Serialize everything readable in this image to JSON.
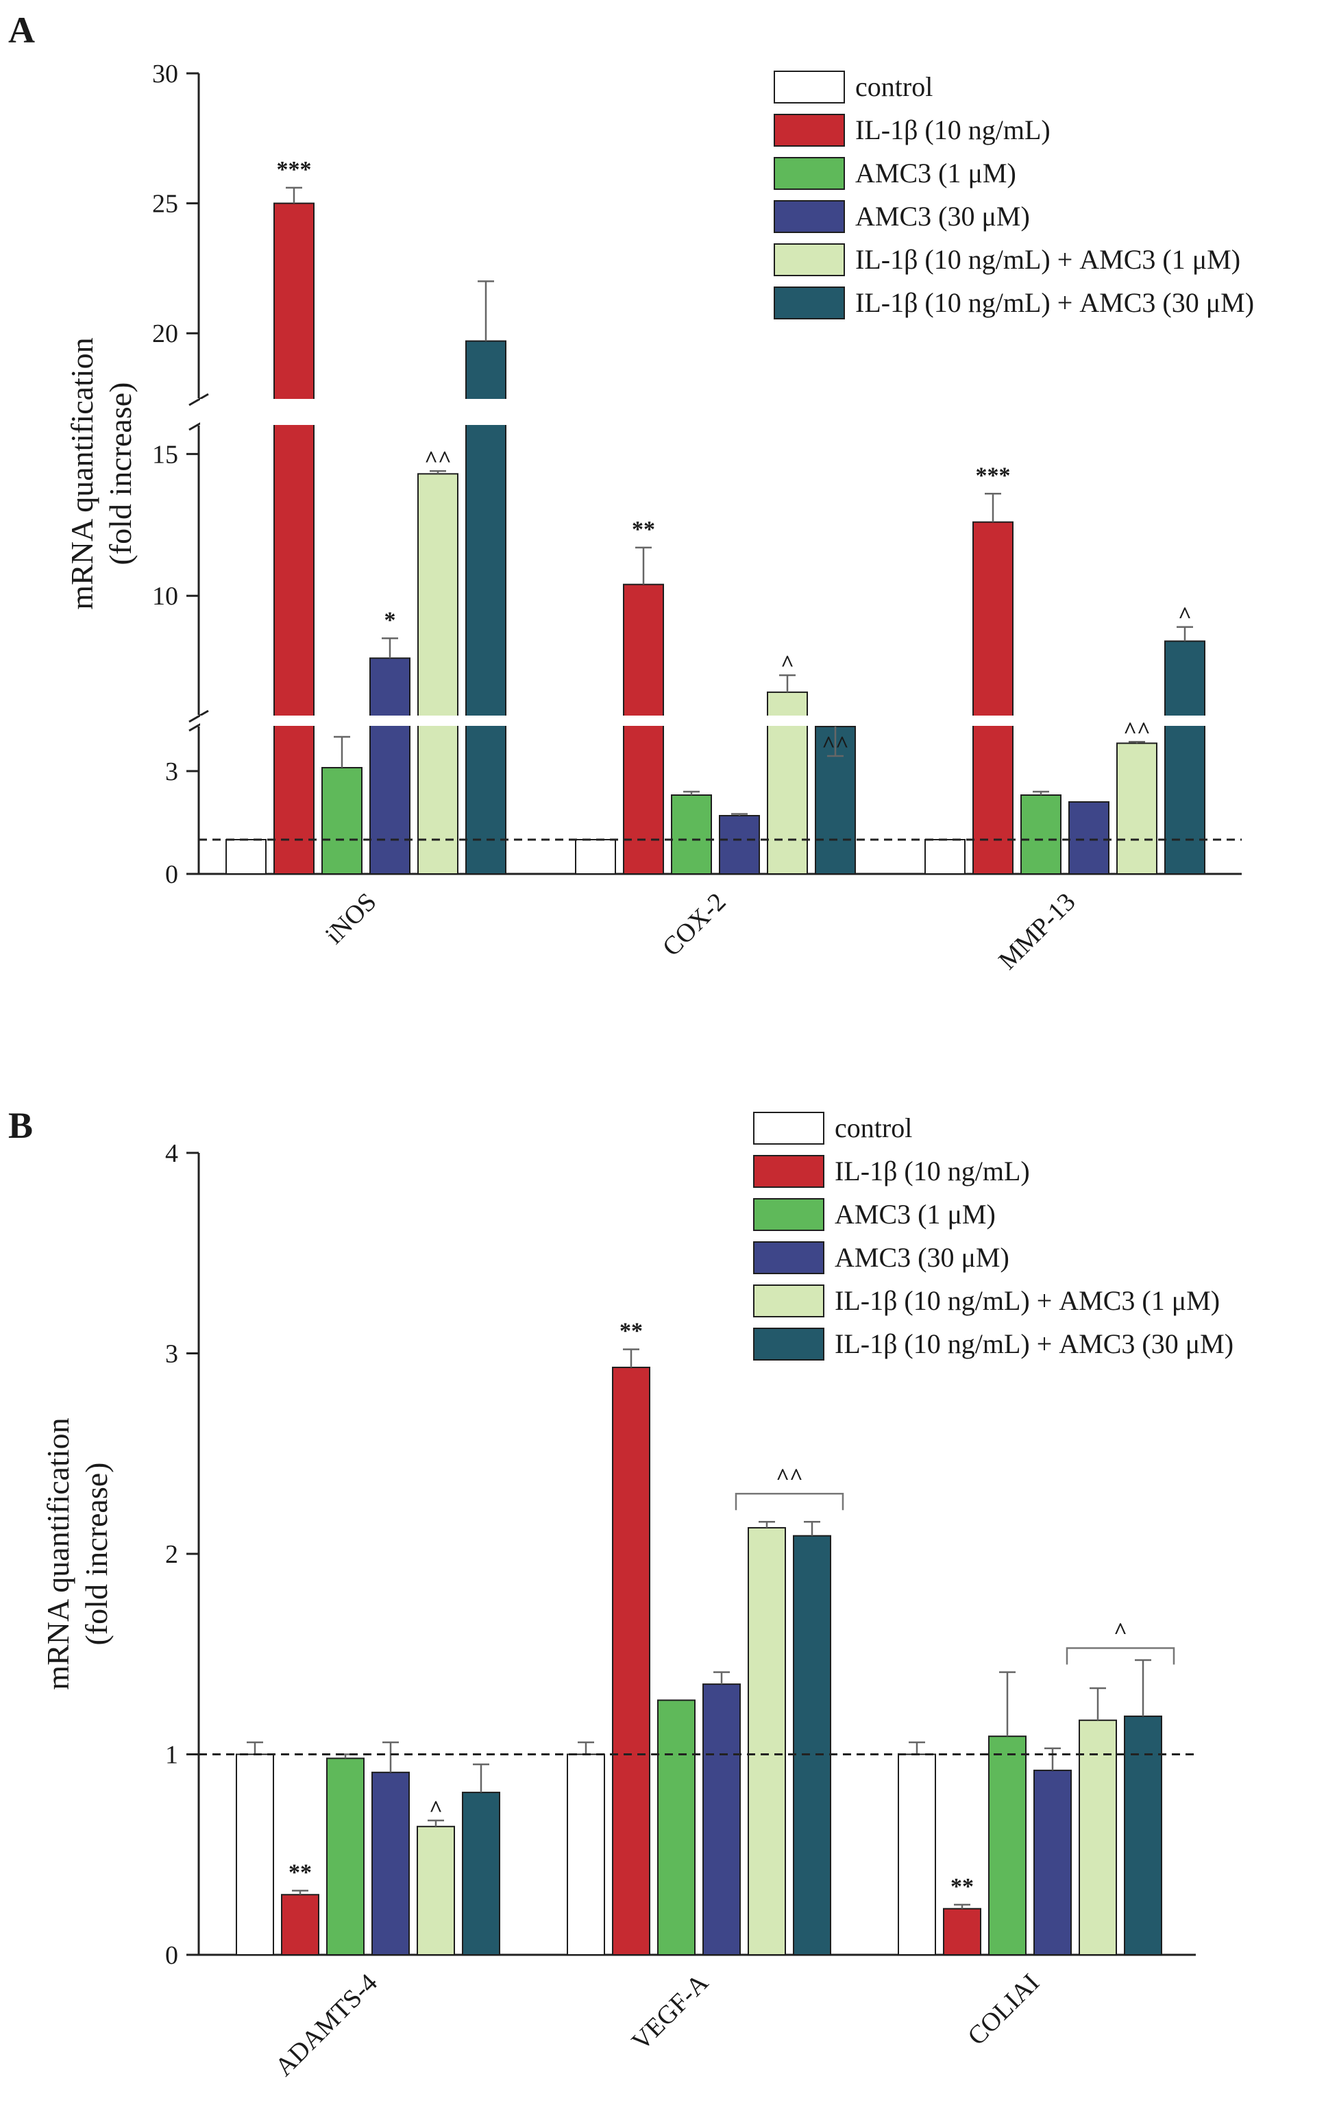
{
  "colors": {
    "control": "#ffffff",
    "il1b": "#c62a31",
    "amc3_1": "#5fb95a",
    "amc3_30": "#3e4689",
    "il1b_amc3_1": "#d5e8b6",
    "il1b_amc3_30": "#23596a"
  },
  "legend": [
    {
      "key": "control",
      "label": "control"
    },
    {
      "key": "il1b",
      "label": "IL-1β (10 ng/mL)"
    },
    {
      "key": "amc3_1",
      "label": "AMC3 (1 μM)"
    },
    {
      "key": "amc3_30",
      "label": "AMC3 (30 μM)"
    },
    {
      "key": "il1b_amc3_1",
      "label": "IL-1β (10 ng/mL) + AMC3 (1 μM)"
    },
    {
      "key": "il1b_amc3_30",
      "label": "IL-1β (10 ng/mL) + AMC3 (30 μM)"
    }
  ],
  "chart_data": [
    {
      "panel": "A",
      "type": "bar",
      "ylabel_line1": "mRNA quantification",
      "ylabel_line2": "(fold increase)",
      "axis_breaks": true,
      "y_ticks": [
        "30",
        "25",
        "20",
        "15",
        "10",
        "3",
        "0"
      ],
      "y_tick_values": [
        30,
        25,
        20,
        15,
        10,
        3,
        0
      ],
      "reference_line": 1.0,
      "categories": [
        "iNOS",
        "COX-2",
        "MMP-13"
      ],
      "series": [
        {
          "key": "control",
          "name": "control",
          "values": [
            1.0,
            1.0,
            1.0
          ],
          "errors": [
            0.0,
            0.0,
            0.0
          ]
        },
        {
          "key": "il1b",
          "name": "IL-1β (10 ng/mL)",
          "values": [
            25.0,
            10.4,
            12.6
          ],
          "errors": [
            0.6,
            1.3,
            1.0
          ]
        },
        {
          "key": "amc3_1",
          "name": "AMC3 (1 μM)",
          "values": [
            3.1,
            2.3,
            2.3
          ],
          "errors": [
            0.9,
            0.1,
            0.1
          ]
        },
        {
          "key": "amc3_30",
          "name": "AMC3 (30 μM)",
          "values": [
            7.8,
            1.7,
            2.1
          ],
          "errors": [
            0.7,
            0.05,
            0.0
          ]
        },
        {
          "key": "il1b_amc3_1",
          "name": "IL-1β (10 ng/mL) + AMC3 (1 μM)",
          "values": [
            14.3,
            6.6,
            4.8
          ],
          "errors": [
            0.1,
            0.6,
            0.05
          ]
        },
        {
          "key": "il1b_amc3_30",
          "name": "IL-1β (10 ng/mL) + AMC3 (30 μM)",
          "values": [
            19.7,
            4.3,
            8.4
          ],
          "errors": [
            2.3,
            0.05,
            0.5
          ]
        }
      ],
      "significance": [
        {
          "category": 0,
          "series": 1,
          "label": "***"
        },
        {
          "category": 0,
          "series": 3,
          "label": "*"
        },
        {
          "category": 0,
          "series": 4,
          "label": "^^"
        },
        {
          "category": 1,
          "series": 1,
          "label": "**"
        },
        {
          "category": 1,
          "series": 4,
          "label": "^"
        },
        {
          "category": 1,
          "series": 5,
          "label": "^^"
        },
        {
          "category": 2,
          "series": 1,
          "label": "***"
        },
        {
          "category": 2,
          "series": 4,
          "label": "^^"
        },
        {
          "category": 2,
          "series": 5,
          "label": "^"
        }
      ],
      "brackets": []
    },
    {
      "panel": "B",
      "type": "bar",
      "ylabel_line1": "mRNA quantification",
      "ylabel_line2": "(fold increase)",
      "axis_breaks": false,
      "ylim": [
        0,
        4
      ],
      "y_ticks": [
        "4",
        "3",
        "2",
        "1",
        "0"
      ],
      "y_tick_values": [
        4,
        3,
        2,
        1,
        0
      ],
      "reference_line": 1.0,
      "categories": [
        "ADAMTS-4",
        "VEGF-A",
        "COLIAI"
      ],
      "series": [
        {
          "key": "control",
          "name": "control",
          "values": [
            1.0,
            1.0,
            1.0
          ],
          "errors": [
            0.06,
            0.06,
            0.06
          ]
        },
        {
          "key": "il1b",
          "name": "IL-1β (10 ng/mL)",
          "values": [
            0.3,
            2.93,
            0.23
          ],
          "errors": [
            0.02,
            0.09,
            0.02
          ]
        },
        {
          "key": "amc3_1",
          "name": "AMC3 (1 μM)",
          "values": [
            0.98,
            1.27,
            1.09
          ],
          "errors": [
            0.02,
            0.0,
            0.32
          ]
        },
        {
          "key": "amc3_30",
          "name": "AMC3 (30 μM)",
          "values": [
            0.91,
            1.35,
            0.92
          ],
          "errors": [
            0.15,
            0.06,
            0.11
          ]
        },
        {
          "key": "il1b_amc3_1",
          "name": "IL-1β (10 ng/mL) + AMC3 (1 μM)",
          "values": [
            0.64,
            2.13,
            1.17
          ],
          "errors": [
            0.03,
            0.03,
            0.16
          ]
        },
        {
          "key": "il1b_amc3_30",
          "name": "IL-1β (10 ng/mL) + AMC3 (30 μM)",
          "values": [
            0.81,
            2.09,
            1.19
          ],
          "errors": [
            0.14,
            0.07,
            0.28
          ]
        }
      ],
      "significance": [
        {
          "category": 0,
          "series": 1,
          "label": "**"
        },
        {
          "category": 0,
          "series": 4,
          "label": "^"
        },
        {
          "category": 1,
          "series": 1,
          "label": "**"
        },
        {
          "category": 2,
          "series": 1,
          "label": "**"
        }
      ],
      "brackets": [
        {
          "category": 1,
          "from_series": 4,
          "to_series": 5,
          "value": 2.3,
          "label": "^^"
        },
        {
          "category": 2,
          "from_series": 4,
          "to_series": 5,
          "value": 1.53,
          "label": "^"
        }
      ]
    }
  ]
}
